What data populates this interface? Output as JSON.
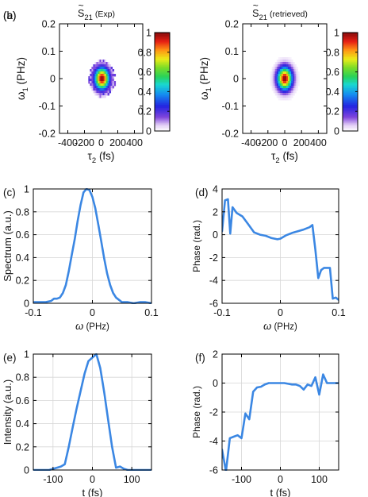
{
  "chart_data": [
    {
      "id": "a",
      "panel_label": "(a)",
      "type": "heatmap",
      "title": "S̃₂₁ (Exp)",
      "title_main": "S",
      "title_tilde": "~",
      "title_sub": "21",
      "title_rest": "(Exp)",
      "xlabel_main": "τ",
      "xlabel_sub": "2",
      "xlabel_rest": " (fs)",
      "ylabel_main": "ω",
      "ylabel_sub": "1",
      "ylabel_rest": " (PHz)",
      "xlim": [
        -500,
        500
      ],
      "ylim": [
        -0.2,
        0.2
      ],
      "xticks": [
        -400,
        -200,
        0,
        200,
        400
      ],
      "xticklabels": [
        "-400",
        "-200",
        "0",
        "200",
        "400"
      ],
      "yticks": [
        -0.2,
        -0.1,
        0,
        0.1,
        0.2
      ],
      "yticklabels": [
        "-0.2",
        "-0.1",
        "0",
        "0.1",
        "0.2"
      ],
      "colorbar": {
        "range": [
          0,
          1
        ],
        "ticks": [
          0,
          0.2,
          0.4,
          0.6,
          0.8,
          1
        ],
        "ticklabels": [
          "0",
          "0.2",
          "0.4",
          "0.6",
          "0.8",
          "1"
        ]
      },
      "peak": {
        "tau": 10,
        "omega": 0.0,
        "sigma_tau": 60,
        "sigma_omega": 0.027
      },
      "noise": true
    },
    {
      "id": "b",
      "panel_label": "(b)",
      "type": "heatmap",
      "title": "S̃₂₁ (retrieved)",
      "title_main": "S",
      "title_tilde": "~",
      "title_sub": "21",
      "title_rest": "(retrieved)",
      "xlabel_main": "τ",
      "xlabel_sub": "2",
      "xlabel_rest": " (fs)",
      "ylabel_main": "ω",
      "ylabel_sub": "1",
      "ylabel_rest": " (PHz)",
      "xlim": [
        -500,
        500
      ],
      "ylim": [
        -0.2,
        0.2
      ],
      "xticks": [
        -400,
        -200,
        0,
        200,
        400
      ],
      "xticklabels": [
        "-400",
        "-200",
        "0",
        "200",
        "400"
      ],
      "yticks": [
        -0.2,
        -0.1,
        0,
        0.1,
        0.2
      ],
      "yticklabels": [
        "-0.2",
        "-0.1",
        "0",
        "0.1",
        "0.2"
      ],
      "colorbar": {
        "range": [
          0,
          1
        ],
        "ticks": [
          0,
          0.2,
          0.4,
          0.6,
          0.8,
          1
        ],
        "ticklabels": [
          "0",
          "0.2",
          "0.4",
          "0.6",
          "0.8",
          "1"
        ]
      },
      "peak": {
        "tau": 0,
        "omega": 0.0,
        "sigma_tau": 60,
        "sigma_omega": 0.028
      },
      "noise": false
    },
    {
      "id": "c",
      "panel_label": "(c)",
      "type": "line",
      "color": "#3b87e3",
      "ylabel": "Spectrum (a.u.)",
      "xlabel_main": "ω",
      "xlabel_rest": " (PHz)",
      "xlim": [
        -0.1,
        0.1
      ],
      "ylim": [
        0,
        1
      ],
      "xticks": [
        -0.1,
        0,
        0.1
      ],
      "xticklabels": [
        "-0.1",
        "0",
        "0.1"
      ],
      "yticks": [
        0,
        0.2,
        0.4,
        0.6,
        0.8,
        1
      ],
      "yticklabels": [
        "0",
        "0.2",
        "0.4",
        "0.6",
        "0.8",
        "1"
      ],
      "grid": true,
      "x": [
        -0.1,
        -0.09,
        -0.08,
        -0.07,
        -0.065,
        -0.06,
        -0.055,
        -0.05,
        -0.045,
        -0.04,
        -0.035,
        -0.03,
        -0.025,
        -0.02,
        -0.015,
        -0.01,
        -0.005,
        0,
        0.005,
        0.01,
        0.015,
        0.02,
        0.025,
        0.03,
        0.035,
        0.04,
        0.045,
        0.05,
        0.06,
        0.07,
        0.08,
        0.09,
        0.1
      ],
      "y": [
        0.01,
        0.01,
        0.01,
        0.02,
        0.04,
        0.04,
        0.05,
        0.09,
        0.16,
        0.28,
        0.42,
        0.56,
        0.72,
        0.86,
        0.97,
        1.0,
        0.99,
        0.93,
        0.83,
        0.69,
        0.54,
        0.39,
        0.26,
        0.16,
        0.09,
        0.05,
        0.03,
        0.01,
        0.01,
        0.0,
        0.01,
        0.01,
        0.0
      ]
    },
    {
      "id": "d",
      "panel_label": "(d)",
      "type": "line",
      "color": "#3b87e3",
      "ylabel": "Phase (rad.)",
      "xlabel_main": "ω",
      "xlabel_rest": " (PHz)",
      "xlim": [
        -0.1,
        0.1
      ],
      "ylim": [
        -6,
        4
      ],
      "xticks": [
        -0.1,
        0,
        0.1
      ],
      "xticklabels": [
        "-0.1",
        "0",
        "0.1"
      ],
      "yticks": [
        -6,
        -4,
        -2,
        0,
        2,
        4
      ],
      "yticklabels": [
        "-6",
        "-4",
        "-2",
        "0",
        "2",
        "4"
      ],
      "grid": true,
      "x": [
        -0.1,
        -0.095,
        -0.09,
        -0.086,
        -0.082,
        -0.075,
        -0.065,
        -0.055,
        -0.045,
        -0.035,
        -0.025,
        -0.015,
        -0.005,
        0.0,
        0.01,
        0.02,
        0.03,
        0.04,
        0.05,
        0.055,
        0.06,
        0.065,
        0.07,
        0.075,
        0.08,
        0.085,
        0.09,
        0.095,
        0.1
      ],
      "y": [
        0.3,
        3.0,
        3.1,
        0.1,
        2.4,
        1.9,
        1.6,
        0.9,
        0.2,
        0.0,
        -0.1,
        -0.3,
        -0.4,
        -0.35,
        -0.05,
        0.15,
        0.3,
        0.45,
        0.65,
        0.85,
        -1.3,
        -3.8,
        -3.1,
        -2.9,
        -2.9,
        -2.9,
        -5.6,
        -5.5,
        -5.7
      ]
    },
    {
      "id": "e",
      "panel_label": "(e)",
      "type": "line",
      "color": "#3b87e3",
      "ylabel": "Intensity (a.u.)",
      "xlabel_main": "t",
      "xlabel_rest": " (fs)",
      "xlim": [
        -150,
        150
      ],
      "ylim": [
        0,
        1
      ],
      "xticks": [
        -100,
        0,
        100
      ],
      "xticklabels": [
        "-100",
        "0",
        "100"
      ],
      "yticks": [
        0,
        0.2,
        0.4,
        0.6,
        0.8,
        1
      ],
      "yticklabels": [
        "0",
        "0.2",
        "0.4",
        "0.6",
        "0.8",
        "1"
      ],
      "grid": true,
      "x": [
        -150,
        -140,
        -130,
        -120,
        -110,
        -100,
        -90,
        -80,
        -70,
        -60,
        -50,
        -40,
        -30,
        -20,
        -10,
        0,
        10,
        20,
        30,
        40,
        50,
        60,
        70,
        80,
        90,
        100,
        110,
        120,
        130,
        140,
        150
      ],
      "y": [
        0.0,
        0.0,
        0.0,
        0.0,
        0.0,
        0.01,
        0.02,
        0.03,
        0.05,
        0.2,
        0.37,
        0.53,
        0.68,
        0.83,
        0.94,
        0.97,
        1.0,
        0.88,
        0.67,
        0.43,
        0.2,
        0.02,
        0.03,
        0.01,
        0.0,
        0.0,
        0.0,
        0.0,
        0.0,
        0.0,
        0.0
      ]
    },
    {
      "id": "f",
      "panel_label": "(f)",
      "type": "line",
      "color": "#3b87e3",
      "ylabel": "Phase (rad.)",
      "xlabel_main": "t",
      "xlabel_rest": " (fs)",
      "xlim": [
        -150,
        150
      ],
      "ylim": [
        -6,
        2
      ],
      "xticks": [
        -100,
        0,
        100
      ],
      "xticklabels": [
        "-100",
        "0",
        "100"
      ],
      "yticks": [
        -6,
        -4,
        -2,
        0,
        2
      ],
      "yticklabels": [
        "-6",
        "-4",
        "-2",
        "0",
        "2"
      ],
      "grid": true,
      "x": [
        -150,
        -140,
        -130,
        -120,
        -110,
        -100,
        -90,
        -80,
        -70,
        -60,
        -50,
        -40,
        -30,
        -20,
        -10,
        0,
        10,
        20,
        30,
        40,
        50,
        60,
        70,
        80,
        90,
        100,
        110,
        120,
        130,
        140,
        150
      ],
      "y": [
        -4.6,
        -6.1,
        -3.8,
        -3.7,
        -3.6,
        -3.8,
        -2.1,
        -2.5,
        -0.6,
        -0.3,
        -0.25,
        -0.1,
        0.0,
        0.0,
        0.0,
        0.0,
        0.0,
        -0.05,
        -0.1,
        -0.1,
        -0.2,
        -0.45,
        -0.1,
        -0.2,
        0.4,
        -0.8,
        0.6,
        0.0,
        0.0,
        0.0,
        0.0
      ]
    }
  ]
}
